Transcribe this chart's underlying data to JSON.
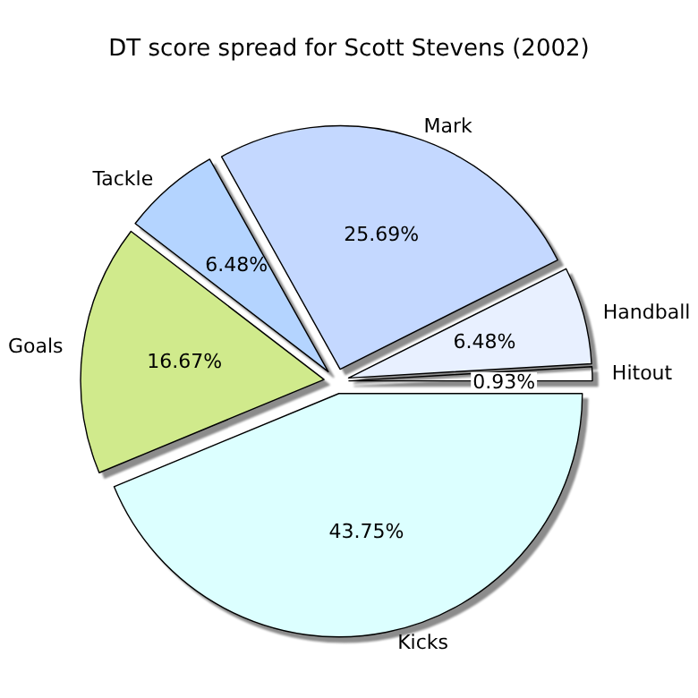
{
  "chart_data": {
    "type": "pie",
    "title": "DT score spread for Scott Stevens (2002)",
    "categories": [
      "Hitout",
      "Handball",
      "Mark",
      "Tackle",
      "Goals",
      "Kicks"
    ],
    "values": [
      0.93,
      6.48,
      25.69,
      6.48,
      16.67,
      43.75
    ],
    "colors": [
      "#ffffff",
      "#e8f0ff",
      "#c4d8ff",
      "#b4d4ff",
      "#d0ea8c",
      "#dcffff"
    ],
    "value_labels": [
      "0.93%",
      "6.48%",
      "25.69%",
      "6.48%",
      "16.67%",
      "43.75%"
    ],
    "legend": false
  }
}
